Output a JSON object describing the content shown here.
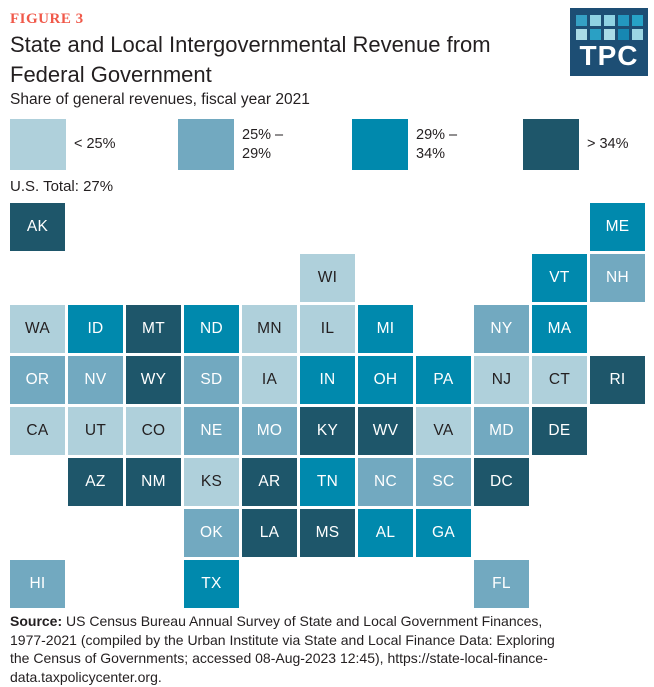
{
  "header": {
    "figure_label": "FIGURE 3",
    "title": "State and Local Intergovernmental Revenue from Federal Government",
    "subtitle": "Share of general revenues, fiscal year 2021",
    "logo_text": "TPC",
    "logo_bg_color": "#1d4e74",
    "logo_square_colors": [
      "#35a0c4",
      "#8fd2e3",
      "#8fd2e3",
      "#2397bf",
      "#27a3c7",
      "#a9dbe7",
      "#2aa0c4",
      "#a9dbe7",
      "#1787b2",
      "#9cd6e3"
    ]
  },
  "chart_data": {
    "type": "heatmap",
    "variant": "state-tile-cartogram",
    "title": "State and Local Intergovernmental Revenue from Federal Government",
    "subtitle": "Share of general revenues, fiscal year 2021",
    "unit": "share of general revenues, percent",
    "us_total_label": "U.S. Total: 27%",
    "legend_position": "top",
    "categories": [
      {
        "key": "lt25",
        "label": "< 25%",
        "color": "#afd0db",
        "text_color": "#231f20"
      },
      {
        "key": "b25_29",
        "label": "25% –\n29%",
        "color": "#72a9c0",
        "text_color": "#ffffff"
      },
      {
        "key": "b29_34",
        "label": "29% –\n34%",
        "color": "#0089ad",
        "text_color": "#ffffff"
      },
      {
        "key": "gt34",
        "label": "> 34%",
        "color": "#1e566a",
        "text_color": "#ffffff"
      }
    ],
    "states": [
      {
        "abbr": "AK",
        "row": 0,
        "col": 0,
        "category": "gt34"
      },
      {
        "abbr": "ME",
        "row": 0,
        "col": 10,
        "category": "b29_34"
      },
      {
        "abbr": "WI",
        "row": 1,
        "col": 5,
        "category": "lt25"
      },
      {
        "abbr": "VT",
        "row": 1,
        "col": 9,
        "category": "b29_34"
      },
      {
        "abbr": "NH",
        "row": 1,
        "col": 10,
        "category": "b25_29"
      },
      {
        "abbr": "WA",
        "row": 2,
        "col": 0,
        "category": "lt25"
      },
      {
        "abbr": "ID",
        "row": 2,
        "col": 1,
        "category": "b29_34"
      },
      {
        "abbr": "MT",
        "row": 2,
        "col": 2,
        "category": "gt34"
      },
      {
        "abbr": "ND",
        "row": 2,
        "col": 3,
        "category": "b29_34"
      },
      {
        "abbr": "MN",
        "row": 2,
        "col": 4,
        "category": "lt25"
      },
      {
        "abbr": "IL",
        "row": 2,
        "col": 5,
        "category": "lt25"
      },
      {
        "abbr": "MI",
        "row": 2,
        "col": 6,
        "category": "b29_34"
      },
      {
        "abbr": "NY",
        "row": 2,
        "col": 8,
        "category": "b25_29"
      },
      {
        "abbr": "MA",
        "row": 2,
        "col": 9,
        "category": "b29_34"
      },
      {
        "abbr": "OR",
        "row": 3,
        "col": 0,
        "category": "b25_29"
      },
      {
        "abbr": "NV",
        "row": 3,
        "col": 1,
        "category": "b25_29"
      },
      {
        "abbr": "WY",
        "row": 3,
        "col": 2,
        "category": "gt34"
      },
      {
        "abbr": "SD",
        "row": 3,
        "col": 3,
        "category": "b25_29"
      },
      {
        "abbr": "IA",
        "row": 3,
        "col": 4,
        "category": "lt25"
      },
      {
        "abbr": "IN",
        "row": 3,
        "col": 5,
        "category": "b29_34"
      },
      {
        "abbr": "OH",
        "row": 3,
        "col": 6,
        "category": "b29_34"
      },
      {
        "abbr": "PA",
        "row": 3,
        "col": 7,
        "category": "b29_34"
      },
      {
        "abbr": "NJ",
        "row": 3,
        "col": 8,
        "category": "lt25"
      },
      {
        "abbr": "CT",
        "row": 3,
        "col": 9,
        "category": "lt25"
      },
      {
        "abbr": "RI",
        "row": 3,
        "col": 10,
        "category": "gt34"
      },
      {
        "abbr": "CA",
        "row": 4,
        "col": 0,
        "category": "lt25"
      },
      {
        "abbr": "UT",
        "row": 4,
        "col": 1,
        "category": "lt25"
      },
      {
        "abbr": "CO",
        "row": 4,
        "col": 2,
        "category": "lt25"
      },
      {
        "abbr": "NE",
        "row": 4,
        "col": 3,
        "category": "b25_29"
      },
      {
        "abbr": "MO",
        "row": 4,
        "col": 4,
        "category": "b25_29"
      },
      {
        "abbr": "KY",
        "row": 4,
        "col": 5,
        "category": "gt34"
      },
      {
        "abbr": "WV",
        "row": 4,
        "col": 6,
        "category": "gt34"
      },
      {
        "abbr": "VA",
        "row": 4,
        "col": 7,
        "category": "lt25"
      },
      {
        "abbr": "MD",
        "row": 4,
        "col": 8,
        "category": "b25_29"
      },
      {
        "abbr": "DE",
        "row": 4,
        "col": 9,
        "category": "gt34"
      },
      {
        "abbr": "AZ",
        "row": 5,
        "col": 1,
        "category": "gt34"
      },
      {
        "abbr": "NM",
        "row": 5,
        "col": 2,
        "category": "gt34"
      },
      {
        "abbr": "KS",
        "row": 5,
        "col": 3,
        "category": "lt25"
      },
      {
        "abbr": "AR",
        "row": 5,
        "col": 4,
        "category": "gt34"
      },
      {
        "abbr": "TN",
        "row": 5,
        "col": 5,
        "category": "b29_34"
      },
      {
        "abbr": "NC",
        "row": 5,
        "col": 6,
        "category": "b25_29"
      },
      {
        "abbr": "SC",
        "row": 5,
        "col": 7,
        "category": "b25_29"
      },
      {
        "abbr": "DC",
        "row": 5,
        "col": 8,
        "category": "gt34"
      },
      {
        "abbr": "OK",
        "row": 6,
        "col": 3,
        "category": "b25_29"
      },
      {
        "abbr": "LA",
        "row": 6,
        "col": 4,
        "category": "gt34"
      },
      {
        "abbr": "MS",
        "row": 6,
        "col": 5,
        "category": "gt34"
      },
      {
        "abbr": "AL",
        "row": 6,
        "col": 6,
        "category": "b29_34"
      },
      {
        "abbr": "GA",
        "row": 6,
        "col": 7,
        "category": "b29_34"
      },
      {
        "abbr": "HI",
        "row": 7,
        "col": 0,
        "category": "b25_29"
      },
      {
        "abbr": "TX",
        "row": 7,
        "col": 3,
        "category": "b29_34"
      },
      {
        "abbr": "FL",
        "row": 7,
        "col": 8,
        "category": "b25_29"
      }
    ]
  },
  "source": {
    "label": "Source:",
    "rest": " US Census Bureau Annual Survey of State and Local Government Finances,\n1977-2021 (compiled by the Urban Institute via State and Local Finance Data: Exploring\nthe Census of Governments; accessed 08-Aug-2023 12:45), https://state-local-finance-\ndata.taxpolicycenter.org."
  }
}
